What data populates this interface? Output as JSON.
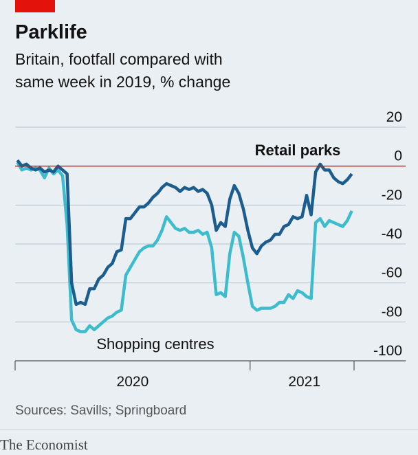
{
  "chart_data": {
    "type": "line",
    "title": "Parklife",
    "subtitle": [
      "Britain, footfall compared with",
      "same week in 2019, % change"
    ],
    "source": "Sources: Savills; Springboard",
    "publisher": "The Economist",
    "x": [
      0,
      1,
      2,
      3,
      4,
      5,
      6,
      7,
      8,
      9,
      10,
      11,
      12,
      13,
      14,
      15,
      16,
      17,
      18,
      19,
      20,
      21,
      22,
      23,
      24,
      25,
      26,
      27,
      28,
      29,
      30,
      31,
      32,
      33,
      34,
      35,
      36,
      37,
      38,
      39,
      40,
      41,
      42,
      43,
      44,
      45,
      46,
      47,
      48,
      49,
      50,
      51,
      52,
      53,
      54,
      55,
      56,
      57,
      58,
      59,
      60,
      61,
      62,
      63,
      64,
      65,
      66,
      67,
      68,
      69,
      70,
      71,
      72,
      73,
      74
    ],
    "xlim": [
      -0.5,
      74.5
    ],
    "xticks": [
      {
        "value": 25.5,
        "label": "2020"
      },
      {
        "value": 63.5,
        "label": "2021"
      }
    ],
    "xtick_marks": [
      -0.5,
      51.5,
      74.5
    ],
    "ylim": [
      -100,
      20
    ],
    "yticks": [
      20,
      0,
      -20,
      -40,
      -60,
      -80,
      -100
    ],
    "grid": true,
    "grid_color": "#b3c3cd",
    "zero_line_color": "#e3120b",
    "series": [
      {
        "name": "Retail parks",
        "color": "#1c5d8e",
        "values": [
          3,
          0,
          1,
          -1,
          -2,
          -1,
          -3,
          -2,
          -3,
          0,
          -2,
          -4,
          -60,
          -71,
          -70,
          -71,
          -63,
          -63,
          -58,
          -56,
          -52,
          -50,
          -44,
          -43,
          -27,
          -27,
          -24,
          -21,
          -21,
          -19,
          -16,
          -14,
          -11,
          -9,
          -10,
          -11,
          -13,
          -11,
          -12,
          -11,
          -13,
          -12,
          -14,
          -20,
          -33,
          -29,
          -31,
          -17,
          -10,
          -14,
          -22,
          -33,
          -42,
          -45,
          -41,
          -39,
          -38,
          -35,
          -35,
          -31,
          -30,
          -26,
          -27,
          -26,
          -15,
          -25,
          -3,
          1,
          -2,
          -2,
          -6,
          -8,
          -9,
          -7,
          -4
        ]
      },
      {
        "name": "Shopping centres",
        "color": "#3ebccc",
        "values": [
          2,
          -2,
          -1,
          -2,
          -1,
          -2,
          -6,
          -1,
          -4,
          -2,
          -5,
          -30,
          -79,
          -84,
          -85,
          -85,
          -82,
          -84,
          -82,
          -80,
          -78,
          -77,
          -75,
          -74,
          -56,
          -52,
          -48,
          -44,
          -42,
          -41,
          -41,
          -38,
          -33,
          -26,
          -29,
          -32,
          -33,
          -32,
          -34,
          -34,
          -33,
          -35,
          -34,
          -42,
          -66,
          -65,
          -67,
          -45,
          -34,
          -36,
          -47,
          -60,
          -72,
          -74,
          -73,
          -73,
          -73,
          -72,
          -70,
          -70,
          -66,
          -68,
          -64,
          -65,
          -67,
          -68,
          -29,
          -27,
          -31,
          -28,
          -29,
          -30,
          -31,
          -28,
          -23
        ]
      }
    ]
  }
}
